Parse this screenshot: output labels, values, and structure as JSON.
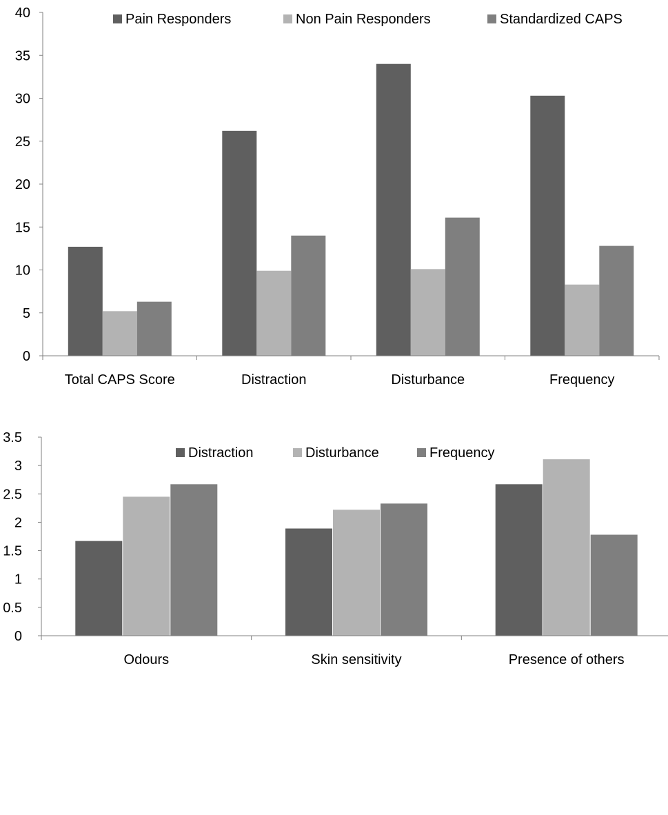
{
  "chart_data": [
    {
      "type": "bar",
      "categories": [
        "Total CAPS Score",
        "Distraction",
        "Disturbance",
        "Frequency"
      ],
      "series": [
        {
          "name": "Pain Responders",
          "values": [
            12.7,
            26.2,
            34.0,
            30.3
          ]
        },
        {
          "name": "Non Pain Responders",
          "values": [
            5.2,
            9.9,
            10.1,
            8.3
          ]
        },
        {
          "name": "Standardized CAPS",
          "values": [
            6.3,
            14.0,
            16.1,
            12.8
          ]
        }
      ],
      "ylim": [
        0,
        40
      ],
      "yticks": [
        "0",
        "5",
        "10",
        "15",
        "20",
        "25",
        "30",
        "35",
        "40"
      ],
      "legend_position": "top",
      "grid": false
    },
    {
      "type": "bar",
      "categories": [
        "Odours",
        "Skin sensitivity",
        "Presence of others"
      ],
      "series": [
        {
          "name": "Distraction",
          "values": [
            1.67,
            1.89,
            2.67
          ]
        },
        {
          "name": "Disturbance",
          "values": [
            2.45,
            2.22,
            3.11
          ]
        },
        {
          "name": "Frequency",
          "values": [
            2.67,
            2.33,
            1.78
          ]
        }
      ],
      "ylim": [
        0,
        3.5
      ],
      "yticks": [
        "0",
        "0.5",
        "1",
        "1.5",
        "2",
        "2.5",
        "3",
        "3.5"
      ],
      "legend_position": "top",
      "grid": false
    }
  ],
  "colors": {
    "series_1": "#5f5f5f",
    "series_2": "#b3b3b3",
    "series_3": "#7f7f7f",
    "axis": "#808080"
  }
}
